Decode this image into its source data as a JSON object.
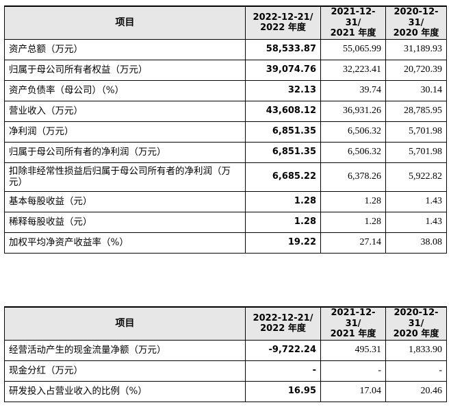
{
  "table1": {
    "headers": {
      "item": "项目",
      "col1_line1": "2022-12-21/",
      "col1_line2": "2022 年度",
      "col2_line1": "2021-12-31/",
      "col2_line2": "2021 年度",
      "col3_line1": "2020-12-31/",
      "col3_line2": "2020 年度"
    },
    "rows": [
      {
        "label": "资产总额（万元）",
        "v2022": "58,533.87",
        "v2021": "55,065.99",
        "v2020": "31,189.93"
      },
      {
        "label": "归属于母公司所有者权益（万元）",
        "v2022": "39,074.76",
        "v2021": "32,223.41",
        "v2020": "20,720.39"
      },
      {
        "label": "资产负债率（母公司）（%）",
        "v2022": "32.13",
        "v2021": "39.74",
        "v2020": "30.14"
      },
      {
        "label": "营业收入（万元）",
        "v2022": "43,608.12",
        "v2021": "36,931.26",
        "v2020": "28,785.95"
      },
      {
        "label": "净利润（万元）",
        "v2022": "6,851.35",
        "v2021": "6,506.32",
        "v2020": "5,701.98"
      },
      {
        "label": "归属于母公司所有者的净利润（万元）",
        "v2022": "6,851.35",
        "v2021": "6,506.32",
        "v2020": "5,701.98"
      },
      {
        "label": "扣除非经常性损益后归属于母公司所有者的净利润（万元）",
        "v2022": "6,685.22",
        "v2021": "6,378.26",
        "v2020": "5,922.82"
      },
      {
        "label": "基本每股收益（元）",
        "v2022": "1.28",
        "v2021": "1.28",
        "v2020": "1.43"
      },
      {
        "label": "稀释每股收益（元）",
        "v2022": "1.28",
        "v2021": "1.28",
        "v2020": "1.43"
      },
      {
        "label": "加权平均净资产收益率（%）",
        "v2022": "19.22",
        "v2021": "27.14",
        "v2020": "38.08"
      }
    ]
  },
  "table2": {
    "headers": {
      "item": "项目",
      "col1_line1": "2022-12-21/",
      "col1_line2": "2022 年度",
      "col2_line1": "2021-12-31/",
      "col2_line2": "2021 年度",
      "col3_line1": "2020-12-31/",
      "col3_line2": "2020 年度"
    },
    "rows": [
      {
        "label": "经营活动产生的现金流量净额（万元）",
        "v2022": "-9,722.24",
        "v2021": "495.31",
        "v2020": "1,833.90"
      },
      {
        "label": "现金分红（万元）",
        "v2022": "-",
        "v2021": "-",
        "v2020": "-"
      },
      {
        "label": "研发投入占营业收入的比例（%）",
        "v2022": "16.95",
        "v2021": "17.04",
        "v2020": "20.46"
      }
    ]
  }
}
